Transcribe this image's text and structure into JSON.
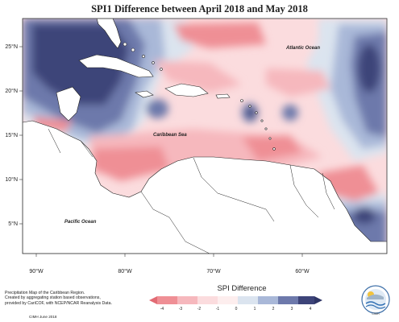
{
  "title": "SPI1 Difference between April 2018 and May 2018",
  "map": {
    "lat_ticks": [
      "25°N",
      "20°N",
      "15°N",
      "10°N",
      "5°N"
    ],
    "lon_ticks": [
      "90°W",
      "80°W",
      "70°W",
      "60°W"
    ],
    "labels": {
      "atlantic": "Atlantic Ocean",
      "caribbean": "Caribbean Sea",
      "pacific": "Pacific Ocean"
    },
    "colors": {
      "dark_blue": "#3d4479",
      "mid_blue": "#6d79ab",
      "light_blue": "#a9b8d8",
      "pale_blue": "#dbe4ef",
      "pale_red": "#fbdcde",
      "light_red": "#f6b8bd",
      "mid_red": "#ef8f95",
      "land": "#ffffff"
    }
  },
  "legend": {
    "title": "SPI Difference",
    "ticks": [
      "-4",
      "-3",
      "-2",
      "-1",
      "0",
      "1",
      "2",
      "3",
      "4"
    ]
  },
  "credit": {
    "line1": "Precipitation Map of the Caribbean Region.",
    "line2": "Created by aggregating station based observations,",
    "line3": "provided by CariCOF, with NCEP/NCAR Reanalysis Data.",
    "line4": "CIMH June 2018"
  },
  "logo": {
    "caption": "CIMH"
  }
}
